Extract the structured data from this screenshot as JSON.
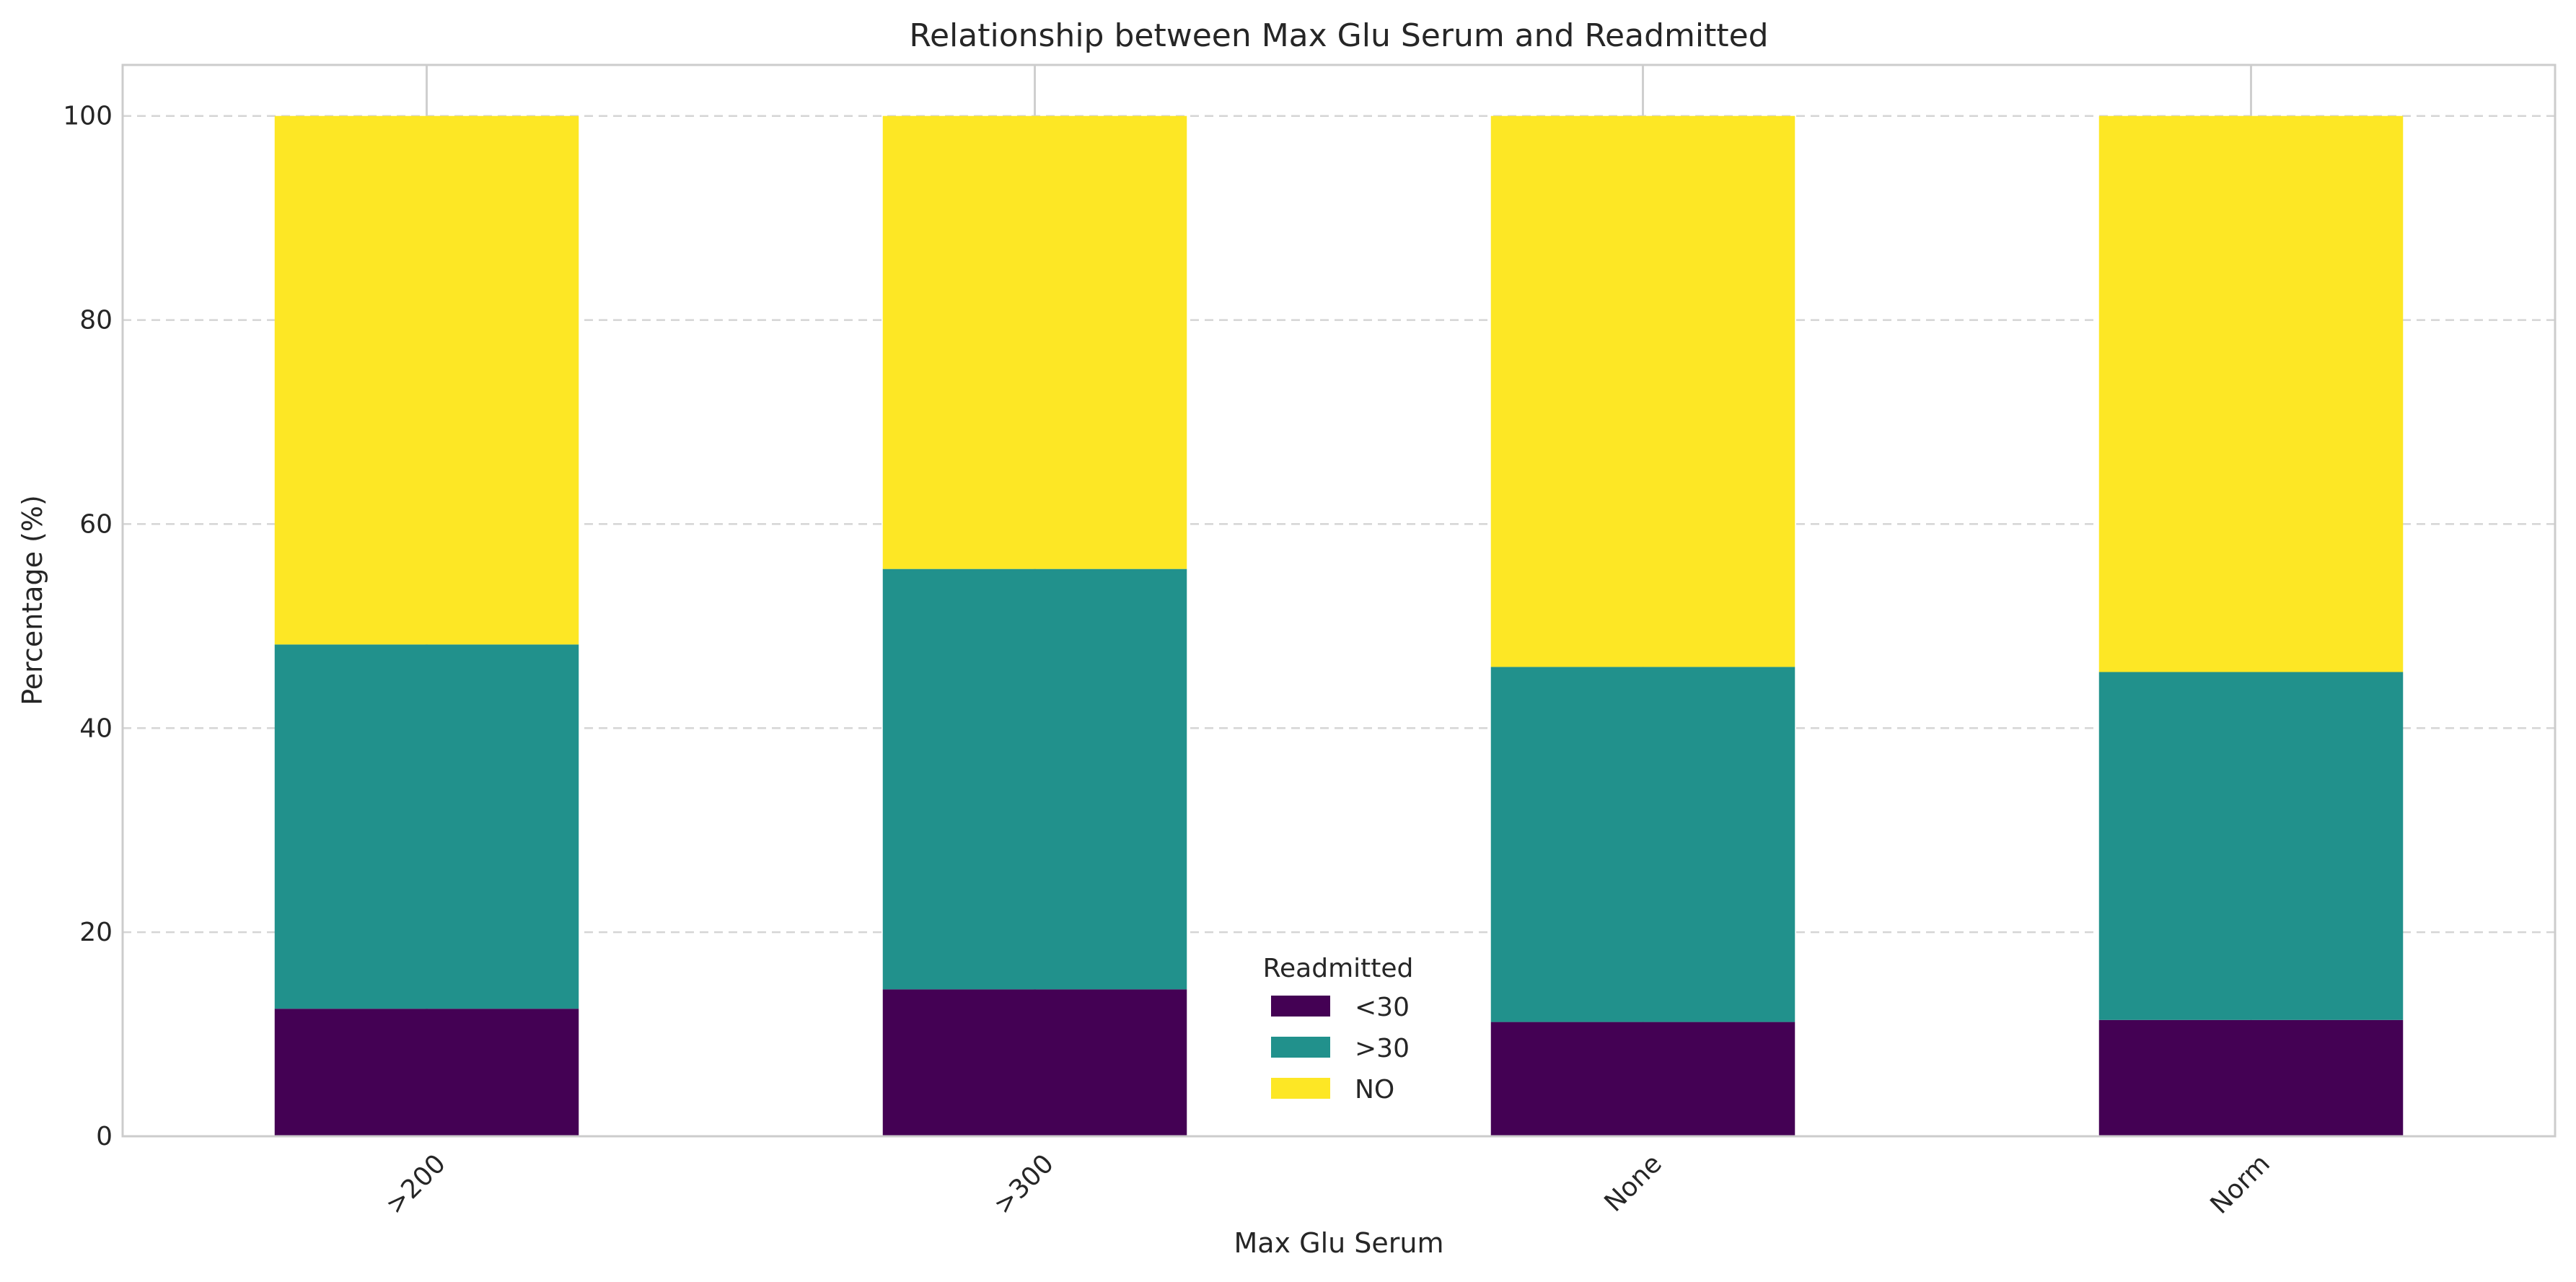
{
  "chart_data": {
    "type": "bar",
    "stacked": true,
    "title": "Relationship between Max Glu Serum and Readmitted",
    "xlabel": "Max Glu Serum",
    "ylabel": "Percentage (%)",
    "categories": [
      ">200",
      ">300",
      "None",
      "Norm"
    ],
    "series": [
      {
        "name": "<30",
        "color": "#440154",
        "values": [
          12.5,
          14.4,
          11.2,
          11.4
        ]
      },
      {
        "name": ">30",
        "color": "#21918c",
        "values": [
          35.7,
          41.2,
          34.8,
          34.1
        ]
      },
      {
        "name": "NO",
        "color": "#fde725",
        "values": [
          51.8,
          44.4,
          54.0,
          54.5
        ]
      }
    ],
    "ylim": [
      0,
      105
    ],
    "yticks": [
      "0",
      "20",
      "40",
      "60",
      "80",
      "100"
    ],
    "grid": true,
    "legend": {
      "title": "Readmitted",
      "placement": "lower-center"
    }
  }
}
